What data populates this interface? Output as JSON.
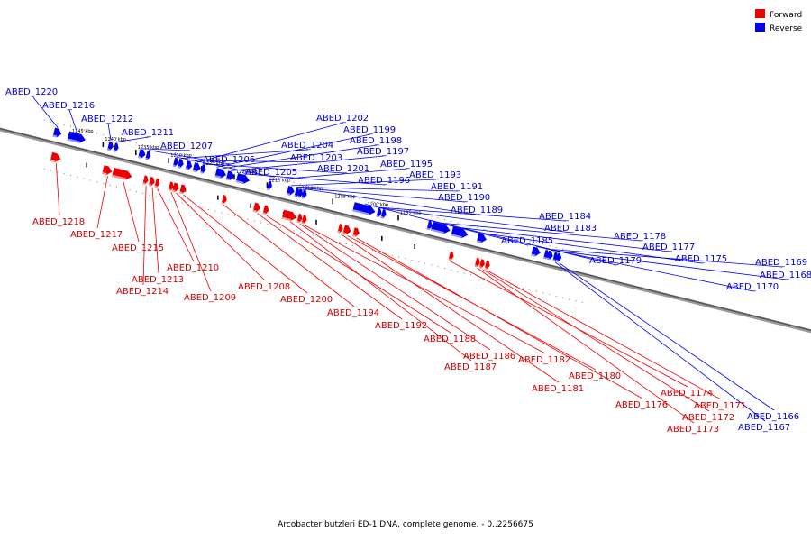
{
  "legend": [
    {
      "label": "Forward",
      "color": "#ee0000"
    },
    {
      "label": "Reverse",
      "color": "#0000ee"
    }
  ],
  "caption": "Arcobacter butzleri ED-1 DNA, complete genome. - 0..2256675",
  "colors": {
    "forward": "#ee0000",
    "reverse": "#0000ee",
    "backbone": "#777777",
    "forward_label": "#cc0000",
    "reverse_label": "#0000cc"
  },
  "scale": {
    "unit": "kbp",
    "ticks": [
      1245,
      1240,
      1235,
      1230,
      1225,
      1220,
      1215,
      1210,
      1205,
      1200,
      1195
    ]
  },
  "genes_reverse": [
    {
      "name": "ABED_1220",
      "start": 1247.5,
      "end": 1246.3
    },
    {
      "name": "ABED_1216",
      "start": 1245.3,
      "end": 1242.6
    },
    {
      "name": "ABED_1212",
      "start": 1239.2,
      "end": 1238.4
    },
    {
      "name": "ABED_1211",
      "start": 1238.3,
      "end": 1237.8
    },
    {
      "name": "ABED_1207",
      "start": 1234.5,
      "end": 1233.5
    },
    {
      "name": "ABED_1206",
      "start": 1233.4,
      "end": 1232.7
    },
    {
      "name": "ABED_1205",
      "start": 1229.2,
      "end": 1228.6
    },
    {
      "name": "ABED_1204",
      "start": 1228.5,
      "end": 1227.7
    },
    {
      "name": "ABED_1203",
      "start": 1227.3,
      "end": 1226.4
    },
    {
      "name": "ABED_1202",
      "start": 1226.2,
      "end": 1225.1
    },
    {
      "name": "ABED_1201",
      "start": 1225.0,
      "end": 1224.6
    },
    {
      "name": "ABED_1199",
      "start": 1222.8,
      "end": 1222.6
    },
    {
      "name": "ABED_1198",
      "start": 1222.5,
      "end": 1221.2
    },
    {
      "name": "ABED_1197",
      "start": 1221.1,
      "end": 1219.9
    },
    {
      "name": "ABED_1196",
      "start": 1219.6,
      "end": 1217.6
    },
    {
      "name": "ABED_1195",
      "start": 1214.9,
      "end": 1214.6
    },
    {
      "name": "ABED_1193",
      "start": 1211.9,
      "end": 1210.8
    },
    {
      "name": "ABED_1191",
      "start": 1210.7,
      "end": 1210.3
    },
    {
      "name": "ABED_1190",
      "start": 1210.2,
      "end": 1209.7
    },
    {
      "name": "ABED_1189",
      "start": 1209.6,
      "end": 1209.0
    },
    {
      "name": "ABED_1185",
      "start": 1201.8,
      "end": 1198.4
    },
    {
      "name": "ABED_1184",
      "start": 1198.2,
      "end": 1197.6
    },
    {
      "name": "ABED_1183",
      "start": 1197.5,
      "end": 1197.2
    },
    {
      "name": "ABED_1179",
      "start": 1190.5,
      "end": 1190.0
    },
    {
      "name": "ABED_1178",
      "start": 1189.9,
      "end": 1187.0
    },
    {
      "name": "ABED_1177",
      "start": 1186.8,
      "end": 1184.3
    },
    {
      "name": "ABED_1175",
      "start": 1182.9,
      "end": 1181.5
    },
    {
      "name": "ABED_1170",
      "start": 1174.6,
      "end": 1173.3
    },
    {
      "name": "ABED_1169",
      "start": 1172.7,
      "end": 1172.3
    },
    {
      "name": "ABED_1168",
      "start": 1172.2,
      "end": 1171.4
    },
    {
      "name": "ABED_1167",
      "start": 1171.3,
      "end": 1170.9
    },
    {
      "name": "ABED_1166",
      "start": 1170.8,
      "end": 1170.1
    }
  ],
  "genes_forward": [
    {
      "name": "ABED_1218",
      "start": 1247.9,
      "end": 1246.4
    },
    {
      "name": "ABED_1217",
      "start": 1240.0,
      "end": 1238.6
    },
    {
      "name": "ABED_1215",
      "start": 1238.5,
      "end": 1235.5
    },
    {
      "name": "ABED_1214",
      "start": 1233.8,
      "end": 1233.1
    },
    {
      "name": "ABED_1213",
      "start": 1232.9,
      "end": 1232.1
    },
    {
      "name": "ABED_1210",
      "start": 1232.0,
      "end": 1231.5
    },
    {
      "name": "ABED_1209",
      "start": 1229.9,
      "end": 1229.4
    },
    {
      "name": "ABED_1208",
      "start": 1229.3,
      "end": 1228.4
    },
    {
      "name": "ABED_1200",
      "start": 1228.2,
      "end": 1227.3
    },
    {
      "name": "ABED_1194",
      "start": 1221.8,
      "end": 1221.4
    },
    {
      "name": "ABED_1192",
      "start": 1217.0,
      "end": 1216.0
    },
    {
      "name": "ABED_1188",
      "start": 1215.5,
      "end": 1214.7
    },
    {
      "name": "ABED_1187",
      "start": 1212.6,
      "end": 1210.4
    },
    {
      "name": "ABED_1186",
      "start": 1210.3,
      "end": 1209.7
    },
    {
      "name": "ABED_1182",
      "start": 1209.6,
      "end": 1209.1
    },
    {
      "name": "ABED_1181",
      "start": 1204.1,
      "end": 1203.4
    },
    {
      "name": "ABED_1180",
      "start": 1203.3,
      "end": 1202.2
    },
    {
      "name": "ABED_1176",
      "start": 1201.8,
      "end": 1200.9
    },
    {
      "name": "ABED_1174",
      "start": 1187.2,
      "end": 1186.9
    },
    {
      "name": "ABED_1173",
      "start": 1183.2,
      "end": 1182.7
    },
    {
      "name": "ABED_1172",
      "start": 1182.5,
      "end": 1181.8
    },
    {
      "name": "ABED_1171",
      "start": 1181.7,
      "end": 1181.2
    }
  ]
}
